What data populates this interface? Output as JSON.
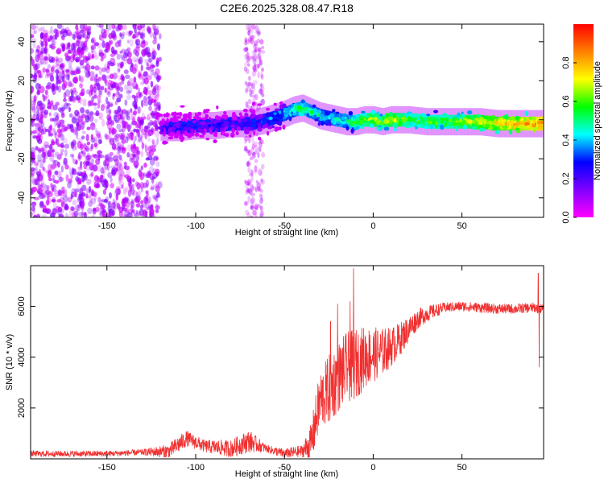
{
  "figure": {
    "title": "C2E6.2025.328.08.47.R18"
  },
  "chart_data": [
    {
      "type": "heatmap",
      "xlabel": "Height of straight line (km)",
      "ylabel": "Frequency (Hz)",
      "xlim": [
        -193,
        96
      ],
      "ylim": [
        -50,
        49
      ],
      "x_ticks": [
        -150,
        -100,
        -50,
        0,
        50
      ],
      "y_ticks": [
        -40,
        -20,
        0,
        20,
        40
      ],
      "grid": false,
      "colorbar": {
        "label": "Normalized spectral amplitude",
        "range": [
          0,
          1
        ],
        "ticks": [
          0.0,
          0.2,
          0.4,
          0.6,
          0.8
        ],
        "colormap": [
          "#ff00ff",
          "#8000ff",
          "#0000ff",
          "#00ffff",
          "#00ff00",
          "#ffff00",
          "#ff8000",
          "#ff0000"
        ]
      },
      "ridge": {
        "x": [
          -120,
          -110,
          -100,
          -90,
          -80,
          -70,
          -60,
          -50,
          -45,
          -40,
          -35,
          -30,
          -25,
          -20,
          -15,
          -10,
          -5,
          0,
          5,
          10,
          20,
          30,
          40,
          50,
          60,
          70,
          80,
          90,
          95
        ],
        "frequency": [
          -4,
          -4,
          -3,
          -3,
          -2,
          -2,
          0,
          3,
          5,
          6,
          4,
          2,
          1,
          0,
          -1,
          -1,
          0,
          0,
          -1,
          0,
          0,
          -1,
          -1,
          -1,
          -1,
          -2,
          -2,
          -2,
          -2
        ],
        "amplitude": [
          0.2,
          0.25,
          0.25,
          0.25,
          0.25,
          0.3,
          0.35,
          0.45,
          0.5,
          0.55,
          0.5,
          0.45,
          0.45,
          0.5,
          0.5,
          0.6,
          0.6,
          0.7,
          0.6,
          0.7,
          0.6,
          0.6,
          0.6,
          0.65,
          0.7,
          0.75,
          0.8,
          0.85,
          0.9
        ]
      },
      "noise_region": {
        "x": [
          -193,
          -120
        ],
        "amplitude": 0.1
      },
      "noise_strip": {
        "x": [
          -72,
          -62
        ],
        "amplitude": 0.05
      }
    },
    {
      "type": "line",
      "xlabel": "Height of straight line (km)",
      "ylabel": "SNR (10 * v/v)",
      "xlim": [
        -193,
        96
      ],
      "ylim": [
        0,
        7600
      ],
      "x_ticks": [
        -150,
        -100,
        -50,
        0,
        50
      ],
      "y_ticks": [
        2000,
        4000,
        6000
      ],
      "color": "#f03030",
      "trend": {
        "x": [
          -193,
          -150,
          -115,
          -105,
          -95,
          -80,
          -70,
          -60,
          -50,
          -40,
          -35,
          -30,
          -25,
          -20,
          -15,
          -10,
          -5,
          0,
          5,
          10,
          15,
          20,
          25,
          30,
          40,
          50,
          60,
          70,
          80,
          90,
          96
        ],
        "y": [
          200,
          200,
          300,
          800,
          500,
          400,
          700,
          400,
          200,
          300,
          600,
          2300,
          2700,
          3200,
          3600,
          3700,
          4000,
          4100,
          4200,
          4400,
          4700,
          5100,
          5500,
          5700,
          5950,
          6000,
          5950,
          5900,
          5900,
          5950,
          5900
        ]
      },
      "noise": {
        "x": [
          -193,
          -130,
          -110,
          -95,
          -80,
          -70,
          -60,
          -40,
          -33,
          -25,
          -10,
          10,
          25,
          40,
          96
        ],
        "amplitude": [
          120,
          120,
          350,
          250,
          350,
          450,
          150,
          250,
          1000,
          1400,
          1400,
          800,
          400,
          200,
          200
        ]
      },
      "spikes": [
        {
          "x": -11,
          "y": 7500
        },
        {
          "x": -9,
          "y": 4200
        },
        {
          "x": -13,
          "y": 6200
        },
        {
          "x": -20,
          "y": 6100
        },
        {
          "x": -24,
          "y": 5400
        },
        {
          "x": 93,
          "y": 7300
        },
        {
          "x": 93.5,
          "y": 3600
        }
      ]
    }
  ]
}
